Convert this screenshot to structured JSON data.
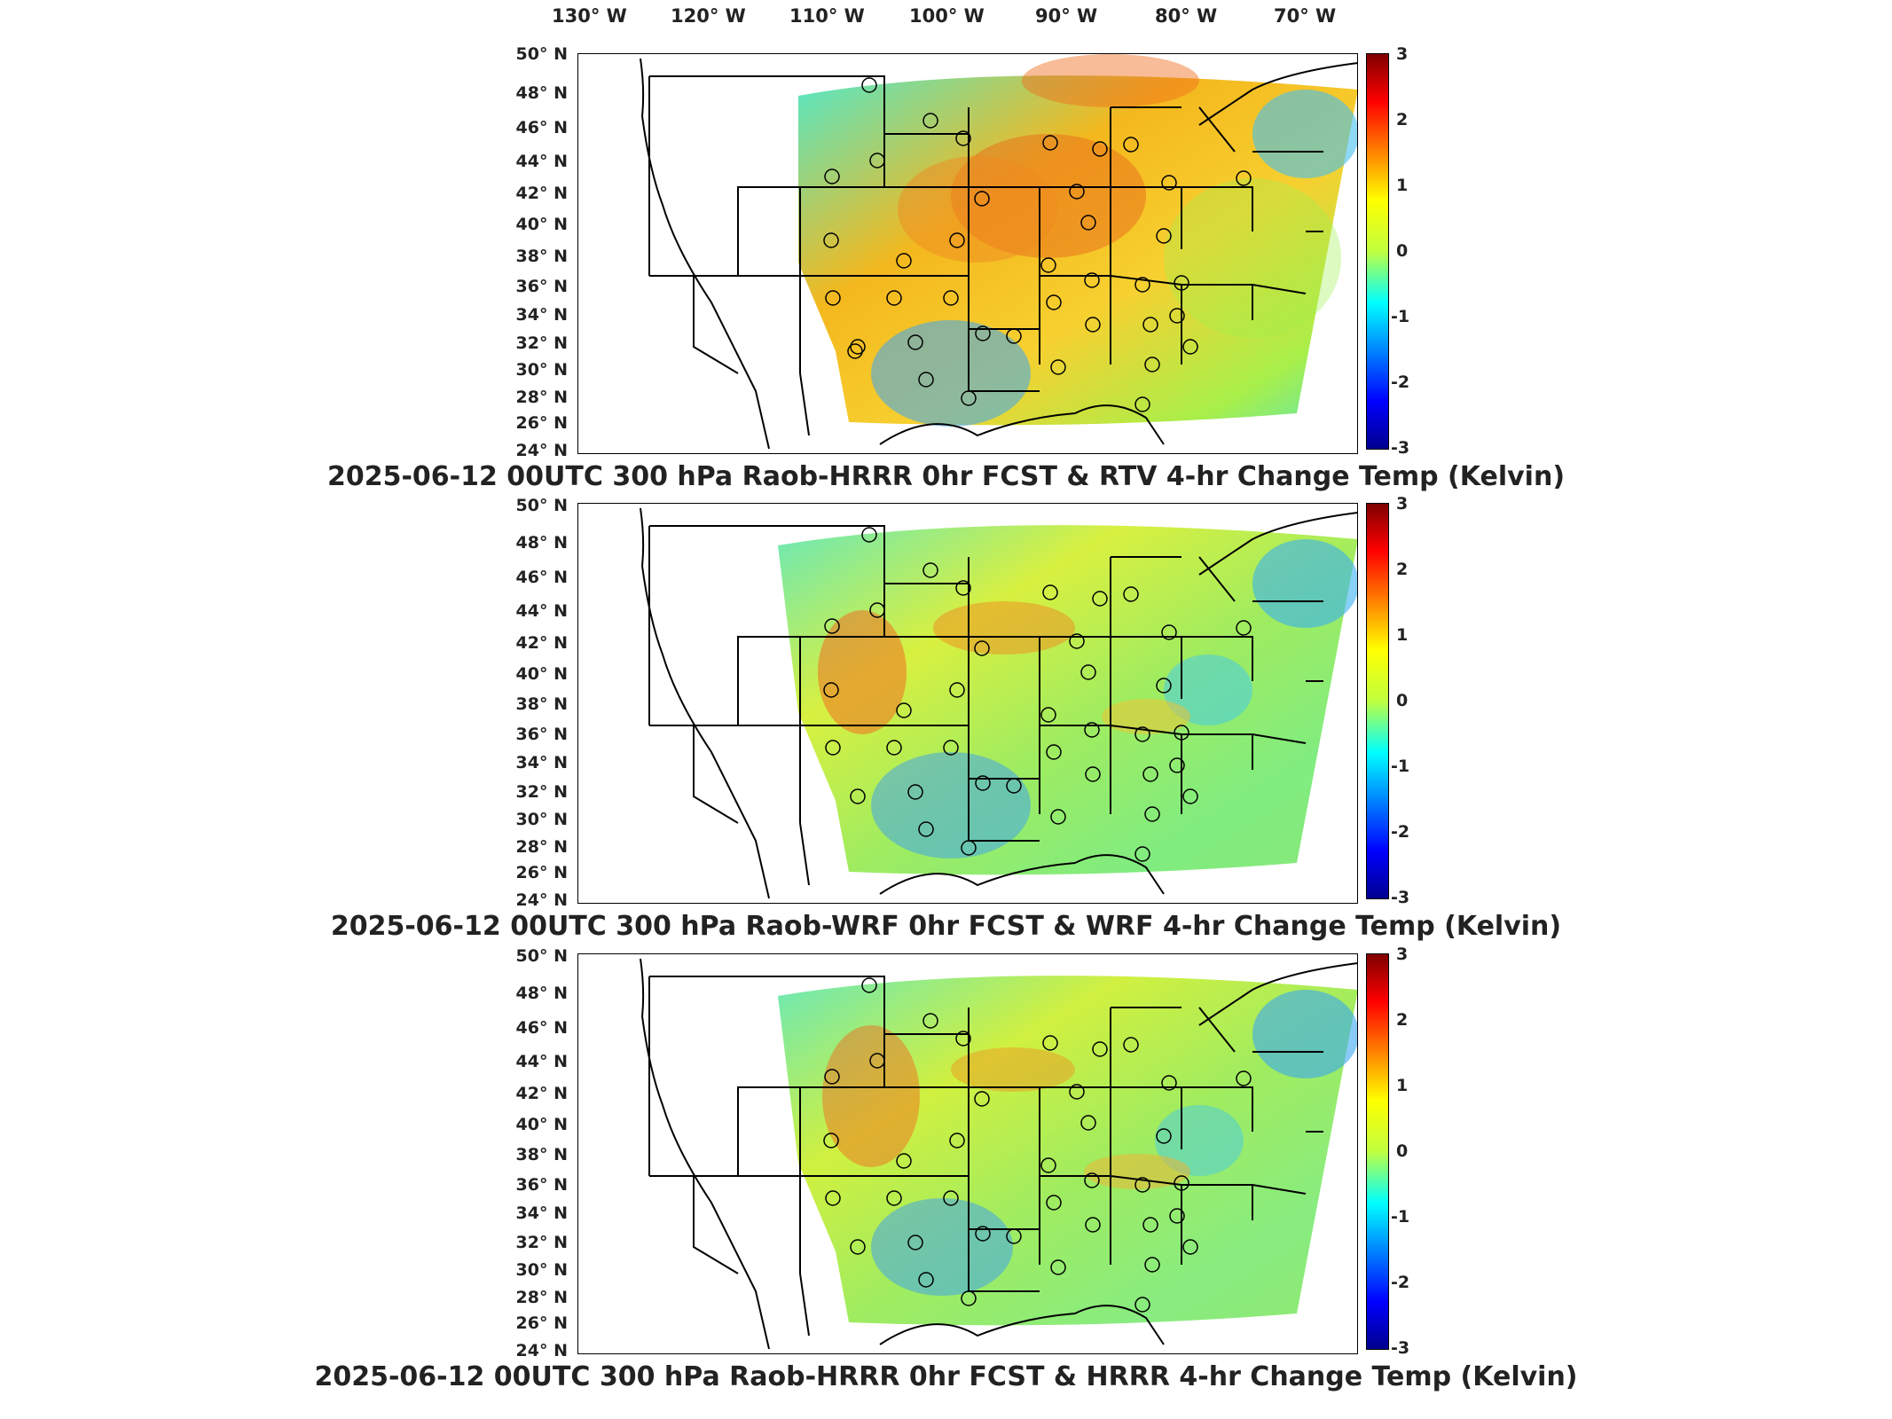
{
  "axes": {
    "lon_labels": [
      "130° W",
      "120° W",
      "110° W",
      "100° W",
      "90° W",
      "80° W",
      "70° W"
    ],
    "lat_labels": [
      "50° N",
      "48° N",
      "46° N",
      "44° N",
      "42° N",
      "40° N",
      "38° N",
      "36° N",
      "34° N",
      "32° N",
      "30° N",
      "28° N",
      "26° N",
      "24° N"
    ]
  },
  "colorbar": {
    "ticks": [
      "3",
      "2",
      "1",
      "0",
      "-1",
      "-2",
      "-3"
    ],
    "range": [
      -3,
      3
    ],
    "colors": [
      "#00008f",
      "#0000ff",
      "#00ffff",
      "#ffff00",
      "#ff0000",
      "#800000"
    ]
  },
  "panels": [
    {
      "title": "2025-06-12 00UTC 300 hPa Raob-HRRR 0hr FCST & RTV 4-hr Change Temp (Kelvin)"
    },
    {
      "title": "2025-06-12 00UTC 300 hPa Raob-WRF 0hr FCST & WRF 4-hr Change Temp (Kelvin)"
    },
    {
      "title": "2025-06-12 00UTC 300 hPa Raob-HRRR 0hr FCST & HRRR 4-hr Change Temp (Kelvin)"
    }
  ]
}
